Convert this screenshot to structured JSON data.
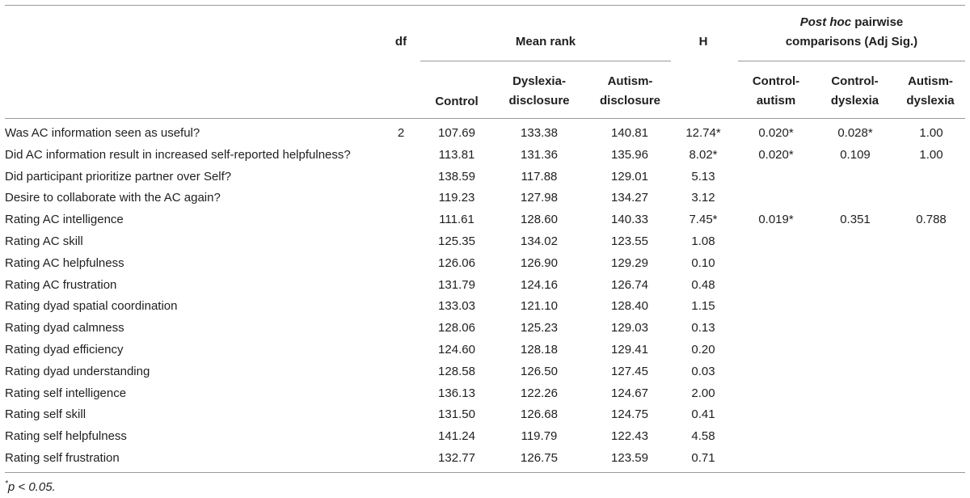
{
  "headers": {
    "df": "df",
    "mean_rank": "Mean rank",
    "h": "H",
    "posthoc_italic": "Post hoc",
    "posthoc_line1_rest": " pairwise",
    "posthoc_line2": "comparisons (Adj Sig.)",
    "control": "Control",
    "dyslexia_1": "Dyslexia-",
    "dyslexia_2": "disclosure",
    "autism_1": "Autism-",
    "autism_2": "disclosure",
    "ca_1": "Control-",
    "ca_2": "autism",
    "cd_1": "Control-",
    "cd_2": "dyslexia",
    "ad_1": "Autism-",
    "ad_2": "dyslexia"
  },
  "rows": [
    {
      "label": "Was AC information seen as useful?",
      "df": "2",
      "control": "107.69",
      "dyslexia": "133.38",
      "autism": "140.81",
      "h": "12.74*",
      "ca": "0.020*",
      "cd": "0.028*",
      "ad": "1.00"
    },
    {
      "label": "Did AC information result in increased self-reported helpfulness?",
      "df": "",
      "control": "113.81",
      "dyslexia": "131.36",
      "autism": "135.96",
      "h": "8.02*",
      "ca": "0.020*",
      "cd": "0.109",
      "ad": "1.00"
    },
    {
      "label": "Did participant prioritize partner over Self?",
      "df": "",
      "control": "138.59",
      "dyslexia": "117.88",
      "autism": "129.01",
      "h": "5.13",
      "ca": "",
      "cd": "",
      "ad": ""
    },
    {
      "label": "Desire to collaborate with the AC again?",
      "df": "",
      "control": "119.23",
      "dyslexia": "127.98",
      "autism": "134.27",
      "h": "3.12",
      "ca": "",
      "cd": "",
      "ad": ""
    },
    {
      "label": "Rating AC intelligence",
      "df": "",
      "control": "111.61",
      "dyslexia": "128.60",
      "autism": "140.33",
      "h": "7.45*",
      "ca": "0.019*",
      "cd": "0.351",
      "ad": "0.788"
    },
    {
      "label": "Rating AC skill",
      "df": "",
      "control": "125.35",
      "dyslexia": "134.02",
      "autism": "123.55",
      "h": "1.08",
      "ca": "",
      "cd": "",
      "ad": ""
    },
    {
      "label": "Rating AC helpfulness",
      "df": "",
      "control": "126.06",
      "dyslexia": "126.90",
      "autism": "129.29",
      "h": "0.10",
      "ca": "",
      "cd": "",
      "ad": ""
    },
    {
      "label": "Rating AC frustration",
      "df": "",
      "control": "131.79",
      "dyslexia": "124.16",
      "autism": "126.74",
      "h": "0.48",
      "ca": "",
      "cd": "",
      "ad": ""
    },
    {
      "label": "Rating dyad spatial coordination",
      "df": "",
      "control": "133.03",
      "dyslexia": "121.10",
      "autism": "128.40",
      "h": "1.15",
      "ca": "",
      "cd": "",
      "ad": ""
    },
    {
      "label": "Rating dyad calmness",
      "df": "",
      "control": "128.06",
      "dyslexia": "125.23",
      "autism": "129.03",
      "h": "0.13",
      "ca": "",
      "cd": "",
      "ad": ""
    },
    {
      "label": "Rating dyad efficiency",
      "df": "",
      "control": "124.60",
      "dyslexia": "128.18",
      "autism": "129.41",
      "h": "0.20",
      "ca": "",
      "cd": "",
      "ad": ""
    },
    {
      "label": "Rating dyad understanding",
      "df": "",
      "control": "128.58",
      "dyslexia": "126.50",
      "autism": "127.45",
      "h": "0.03",
      "ca": "",
      "cd": "",
      "ad": ""
    },
    {
      "label": "Rating self intelligence",
      "df": "",
      "control": "136.13",
      "dyslexia": "122.26",
      "autism": "124.67",
      "h": "2.00",
      "ca": "",
      "cd": "",
      "ad": ""
    },
    {
      "label": "Rating self skill",
      "df": "",
      "control": "131.50",
      "dyslexia": "126.68",
      "autism": "124.75",
      "h": "0.41",
      "ca": "",
      "cd": "",
      "ad": ""
    },
    {
      "label": "Rating self helpfulness",
      "df": "",
      "control": "141.24",
      "dyslexia": "119.79",
      "autism": "122.43",
      "h": "4.58",
      "ca": "",
      "cd": "",
      "ad": ""
    },
    {
      "label": "Rating self frustration",
      "df": "",
      "control": "132.77",
      "dyslexia": "126.75",
      "autism": "123.59",
      "h": "0.71",
      "ca": "",
      "cd": "",
      "ad": ""
    }
  ],
  "footnote": {
    "marker": "*",
    "text": "p < 0.05."
  }
}
